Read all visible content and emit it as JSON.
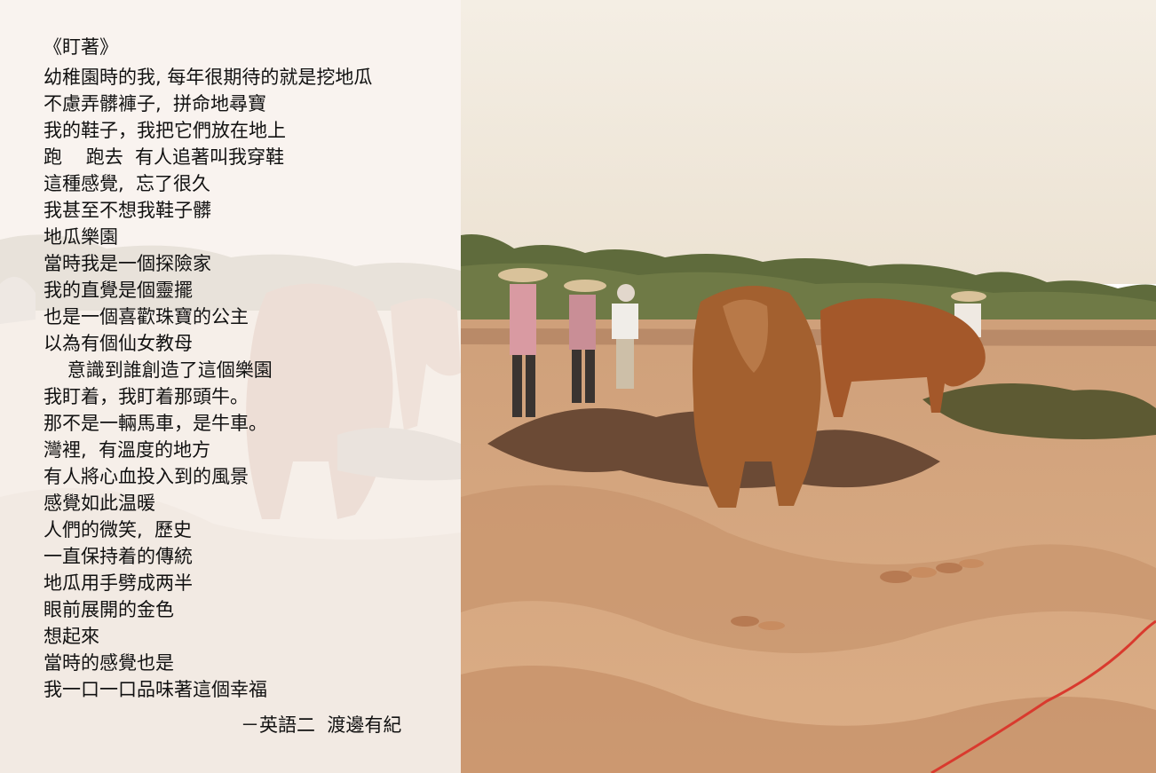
{
  "poem": {
    "title": "《盯著》",
    "lines": [
      "幼稚園時的我, 每年很期待的就是挖地瓜",
      "不慮弄髒褲子,  拼命地尋寶",
      "我的鞋子，我把它們放在地上",
      "跑    跑去  有人追著叫我穿鞋",
      "這種感覺,  忘了很久",
      "我甚至不想我鞋子髒",
      "地瓜樂園",
      "當時我是一個探險家",
      "我的直覺是個靈擺",
      "也是一個喜歡珠寶的公主",
      "以為有個仙女教母",
      "    意識到誰創造了這個樂園",
      "我盯着，我盯着那頭牛。",
      "那不是一輛馬車，是牛車。",
      "灣裡,  有溫度的地方",
      "有人將心血投入到的風景",
      "感覺如此温暖",
      "人們的微笑,  歷史",
      "一直保持着的傳統",
      "地瓜用手劈成两半",
      "眼前展開的金色",
      "想起來",
      "當時的感覺也是",
      "我一口一口品味著這個幸福"
    ],
    "author": "－英語二  渡邊有紀"
  },
  "colors": {
    "sky": "#f2ece1",
    "sand": "#d7a77d",
    "trees": "#5c6a3a",
    "cattle": "#9a5a2c",
    "text": "#111111"
  }
}
